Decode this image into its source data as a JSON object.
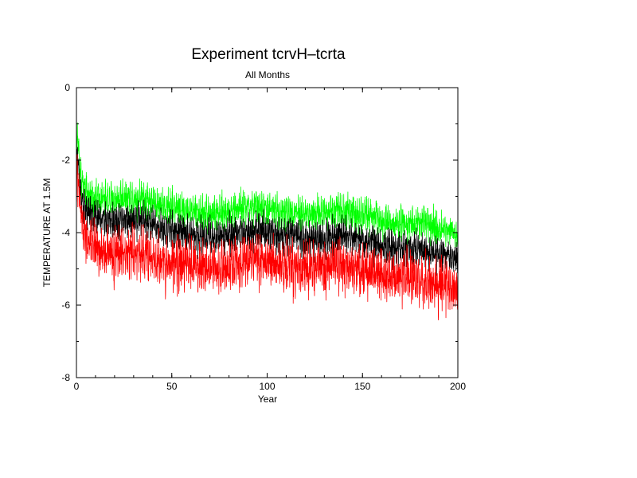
{
  "chart_data": {
    "type": "line",
    "title": "Experiment tcrvH–tcrta",
    "subtitle": "All Months",
    "xlabel": "Year",
    "ylabel": "TEMPERATURE AT 1.5M",
    "xlim": [
      0,
      200
    ],
    "ylim": [
      -8,
      0
    ],
    "x_ticks": [
      0,
      50,
      100,
      150,
      200
    ],
    "y_ticks": [
      0,
      -2,
      -4,
      -6,
      -8
    ],
    "x_tick_labels": [
      "0",
      "50",
      "100",
      "150",
      "200"
    ],
    "y_tick_labels": [
      "0",
      "-2",
      "-4",
      "-6",
      "-8"
    ],
    "x_minor_step": 10,
    "y_minor_step": 1,
    "grid": false,
    "x": [
      0,
      0.5,
      1,
      1.5,
      2,
      3,
      4,
      5,
      6,
      8,
      10,
      12,
      15,
      20,
      25,
      30,
      35,
      40,
      45,
      50,
      55,
      60,
      65,
      70,
      75,
      80,
      85,
      90,
      95,
      100,
      105,
      110,
      115,
      120,
      125,
      130,
      135,
      140,
      145,
      150,
      155,
      160,
      165,
      170,
      175,
      180,
      185,
      190,
      195,
      200
    ],
    "series": [
      {
        "color": "#00ff00",
        "amplitude": 0.3,
        "values": [
          -2.4,
          -1.2,
          -1.6,
          -2.0,
          -2.3,
          -2.6,
          -2.8,
          -2.9,
          -2.95,
          -3.0,
          -3.05,
          -3.05,
          -3.1,
          -3.1,
          -3.0,
          -3.05,
          -3.0,
          -3.15,
          -3.25,
          -3.3,
          -3.35,
          -3.4,
          -3.45,
          -3.45,
          -3.5,
          -3.4,
          -3.35,
          -3.3,
          -3.3,
          -3.35,
          -3.4,
          -3.45,
          -3.4,
          -3.5,
          -3.5,
          -3.45,
          -3.35,
          -3.35,
          -3.45,
          -3.5,
          -3.55,
          -3.65,
          -3.7,
          -3.75,
          -3.75,
          -3.75,
          -3.8,
          -3.9,
          -3.9,
          -4.05
        ]
      },
      {
        "color": "#000000",
        "amplitude": 0.3,
        "values": [
          -2.8,
          -1.7,
          -2.1,
          -2.5,
          -2.8,
          -3.1,
          -3.3,
          -3.4,
          -3.45,
          -3.55,
          -3.6,
          -3.6,
          -3.65,
          -3.7,
          -3.65,
          -3.65,
          -3.65,
          -3.8,
          -3.9,
          -3.95,
          -4.0,
          -4.05,
          -4.1,
          -4.1,
          -4.15,
          -4.05,
          -4.0,
          -3.95,
          -3.95,
          -4.0,
          -4.05,
          -4.1,
          -4.05,
          -4.2,
          -4.2,
          -4.15,
          -4.05,
          -4.05,
          -4.15,
          -4.2,
          -4.25,
          -4.35,
          -4.4,
          -4.45,
          -4.45,
          -4.45,
          -4.5,
          -4.6,
          -4.6,
          -4.75
        ]
      },
      {
        "color": "#ff0000",
        "amplitude": 0.45,
        "values": [
          -3.2,
          -2.2,
          -2.6,
          -3.0,
          -3.4,
          -3.7,
          -3.9,
          -4.1,
          -4.2,
          -4.4,
          -4.5,
          -4.5,
          -4.55,
          -4.6,
          -4.55,
          -4.55,
          -4.55,
          -4.7,
          -4.8,
          -4.85,
          -4.85,
          -4.9,
          -4.95,
          -4.95,
          -5.0,
          -4.9,
          -4.85,
          -4.8,
          -4.8,
          -4.85,
          -4.9,
          -4.95,
          -4.9,
          -5.0,
          -5.0,
          -4.95,
          -4.9,
          -4.9,
          -5.0,
          -5.05,
          -5.1,
          -5.15,
          -5.2,
          -5.25,
          -5.25,
          -5.3,
          -5.35,
          -5.45,
          -5.45,
          -5.55
        ]
      }
    ]
  }
}
